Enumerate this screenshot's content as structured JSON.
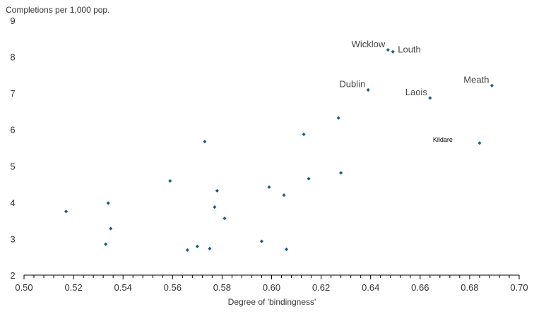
{
  "colors": {
    "marker": "#1f5f7a",
    "axis": "#000000",
    "text": "#333333"
  },
  "chart_data": {
    "type": "scatter",
    "ylabel": "Completions per 1,000 pop.",
    "xlabel": "Degree of 'bindingness'",
    "xlim": [
      0.5,
      0.7
    ],
    "ylim": [
      2,
      9
    ],
    "x_ticks": [
      "0.50",
      "0.52",
      "0.54",
      "0.56",
      "0.58",
      "0.60",
      "0.62",
      "0.64",
      "0.66",
      "0.68",
      "0.70"
    ],
    "y_ticks": [
      "2",
      "3",
      "4",
      "5",
      "6",
      "7",
      "8",
      "9"
    ],
    "grid": false,
    "points": [
      {
        "x": 0.517,
        "y": 3.75
      },
      {
        "x": 0.534,
        "y": 3.98
      },
      {
        "x": 0.535,
        "y": 3.28
      },
      {
        "x": 0.533,
        "y": 2.85
      },
      {
        "x": 0.559,
        "y": 4.59
      },
      {
        "x": 0.566,
        "y": 2.69
      },
      {
        "x": 0.57,
        "y": 2.79
      },
      {
        "x": 0.573,
        "y": 5.67
      },
      {
        "x": 0.575,
        "y": 2.73
      },
      {
        "x": 0.577,
        "y": 3.87
      },
      {
        "x": 0.578,
        "y": 4.32
      },
      {
        "x": 0.581,
        "y": 3.56
      },
      {
        "x": 0.596,
        "y": 2.93
      },
      {
        "x": 0.599,
        "y": 4.42
      },
      {
        "x": 0.605,
        "y": 4.2
      },
      {
        "x": 0.606,
        "y": 2.71
      },
      {
        "x": 0.613,
        "y": 5.87
      },
      {
        "x": 0.615,
        "y": 4.65
      },
      {
        "x": 0.627,
        "y": 6.32
      },
      {
        "x": 0.628,
        "y": 4.81
      },
      {
        "x": 0.639,
        "y": 7.09,
        "label": "Dublin",
        "label_pos": "left"
      },
      {
        "x": 0.647,
        "y": 8.19,
        "label": "Wicklow",
        "label_pos": "left"
      },
      {
        "x": 0.649,
        "y": 8.14,
        "label": "Louth",
        "label_pos": "right"
      },
      {
        "x": 0.664,
        "y": 6.87,
        "label": "Laois",
        "label_pos": "left"
      },
      {
        "x": 0.684,
        "y": 5.63,
        "label": "Kildare",
        "label_pos": "left-small"
      },
      {
        "x": 0.689,
        "y": 7.21,
        "label": "Meath",
        "label_pos": "left"
      }
    ]
  }
}
